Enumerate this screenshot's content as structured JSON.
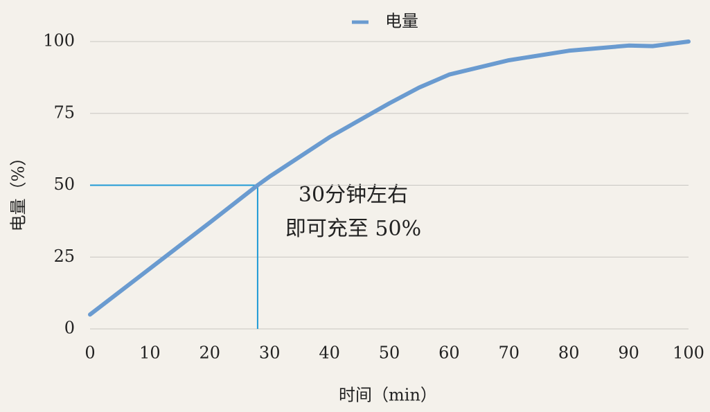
{
  "chart_data": {
    "type": "line",
    "x": [
      0,
      10,
      20,
      28,
      30,
      40,
      50,
      55,
      60,
      70,
      80,
      90,
      94,
      100
    ],
    "series": [
      {
        "name": "电量",
        "color": "#6a9bd0",
        "values": [
          5,
          21,
          37,
          50,
          53,
          66.7,
          78.5,
          84,
          88.5,
          93.5,
          96.8,
          98.6,
          98.4,
          100
        ]
      }
    ],
    "xlim": [
      0,
      100
    ],
    "xticks": [
      0,
      10,
      20,
      30,
      40,
      50,
      60,
      70,
      80,
      90,
      100
    ],
    "ylim": [
      0,
      100
    ],
    "yticks": [
      0,
      25,
      50,
      75,
      100
    ],
    "grid": true,
    "legend": "top",
    "xlabel": "时间（min）",
    "ylabel": "电量（%）",
    "reference_x": 28,
    "reference_y": 50,
    "reference_color": "#1f9ad6",
    "annotation": [
      "30分钟左右",
      "即可充至 50%"
    ]
  }
}
